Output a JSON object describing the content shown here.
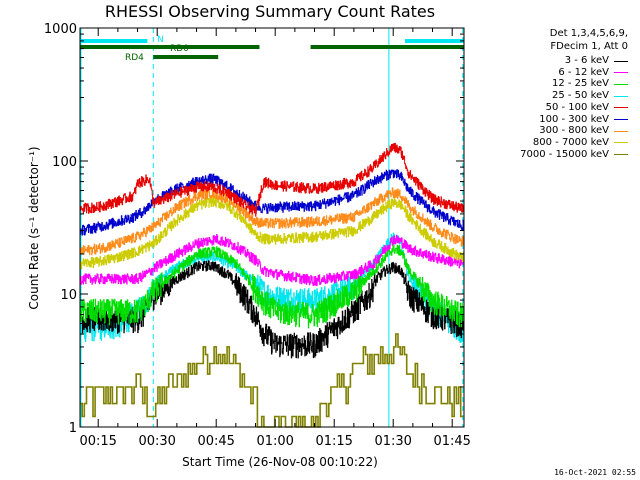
{
  "chart_data": {
    "type": "line",
    "title": "RHESSI Observing Summary Count Rates",
    "xlabel": "Start Time (26-Nov-08 00:10:22)",
    "ylabel": "Count Rate (s⁻¹ detector⁻¹)",
    "y_scale": "log",
    "ylim": [
      1,
      1000
    ],
    "xlim_minutes": [
      10.37,
      108
    ],
    "y_tick_labels": [
      "1",
      "10",
      "100",
      "1000"
    ],
    "x_tick_labels": [
      "00:15",
      "00:30",
      "00:45",
      "01:00",
      "01:15",
      "01:30",
      "01:45"
    ],
    "x_tick_minutes": [
      15,
      30,
      45,
      60,
      75,
      90,
      105
    ],
    "grid": false,
    "legend_placement": "right-outside",
    "legend_header": [
      "Det 1,3,4,5,6,9,",
      "FDecim 1, Att 0"
    ],
    "series": [
      {
        "name": "3 - 6 keV",
        "color": "#000000",
        "x": [
          25,
          27,
          28,
          29,
          35,
          40,
          44,
          48,
          52,
          55,
          57,
          60,
          70,
          80,
          84,
          86,
          88,
          90,
          92,
          94,
          100,
          107
        ],
        "y": [
          6.5,
          7.3,
          8.8,
          9.7,
          13,
          16,
          16.5,
          14,
          10,
          7,
          5.2,
          4.2,
          4.2,
          7.5,
          10,
          13.3,
          15,
          16,
          15,
          10,
          7,
          6
        ]
      },
      {
        "name": "6 - 12 keV",
        "color": "#ff00ff",
        "x": [
          25,
          28,
          29,
          35,
          40,
          45,
          50,
          55,
          57,
          60,
          70,
          80,
          85,
          88,
          90,
          92,
          94,
          100,
          107
        ],
        "y": [
          13,
          14.6,
          15.5,
          20,
          24,
          26,
          23,
          18,
          15,
          14.2,
          12.6,
          14,
          17,
          22,
          26,
          25,
          22,
          19,
          17
        ]
      },
      {
        "name": "12 - 25 keV",
        "color": "#00dd00",
        "x": [
          25,
          27,
          28,
          29,
          35,
          40,
          45,
          50,
          55,
          57,
          60,
          70,
          80,
          85,
          88,
          90,
          92,
          94,
          100,
          107
        ],
        "y": [
          7.5,
          8.5,
          9.5,
          10.5,
          15,
          20,
          21,
          17,
          11,
          9,
          7.5,
          7,
          10.5,
          15,
          19,
          22,
          21,
          15,
          9,
          7
        ]
      },
      {
        "name": "25 - 50 keV",
        "color": "#00e5ee",
        "x": [
          10.5,
          20,
          25,
          28,
          29,
          35,
          40,
          45,
          50,
          55,
          57,
          60,
          70,
          80,
          85,
          88,
          90,
          92,
          94,
          100,
          107
        ],
        "y": [
          5.5,
          5.8,
          7.5,
          9.5,
          12,
          16,
          19,
          19,
          16,
          12,
          10.5,
          9.5,
          9,
          11.5,
          17,
          23,
          27,
          24,
          13,
          8,
          5.5
        ]
      },
      {
        "name": "50 - 100 keV",
        "color": "#e60000",
        "x": [
          10.5,
          15,
          20,
          24,
          25,
          28,
          29,
          35,
          40,
          44,
          48,
          52,
          55,
          57,
          60,
          70,
          80,
          85,
          88,
          90,
          92,
          94,
          100,
          107
        ],
        "y": [
          44,
          45,
          50,
          55,
          68,
          74,
          48,
          57,
          64,
          64,
          58,
          47,
          42,
          70,
          66,
          62,
          70,
          90,
          112,
          128,
          118,
          80,
          52,
          44
        ]
      },
      {
        "name": "100 - 300 keV",
        "color": "#0000cc",
        "x": [
          10.5,
          15,
          20,
          24,
          27,
          29,
          35,
          40,
          44,
          48,
          52,
          55,
          57,
          60,
          70,
          80,
          85,
          88,
          90,
          92,
          94,
          100,
          107
        ],
        "y": [
          30,
          32,
          35,
          38,
          43,
          50,
          62,
          70,
          74,
          64,
          53,
          46,
          44,
          45,
          46,
          55,
          70,
          78,
          82,
          76,
          60,
          42,
          33
        ]
      },
      {
        "name": "300 - 800 keV",
        "color": "#ff8c1a",
        "x": [
          10.5,
          15,
          20,
          25,
          29,
          35,
          40,
          44,
          48,
          52,
          55,
          57,
          60,
          70,
          80,
          85,
          88,
          90,
          92,
          94,
          100,
          107
        ],
        "y": [
          21,
          22,
          24,
          27,
          32,
          45,
          55,
          58,
          52,
          42,
          35,
          34,
          34,
          35,
          38,
          48,
          55,
          58,
          56,
          46,
          32,
          25
        ]
      },
      {
        "name": "800 - 7000 keV",
        "color": "#cccc00",
        "x": [
          10.5,
          15,
          20,
          25,
          29,
          35,
          40,
          44,
          48,
          52,
          55,
          57,
          60,
          70,
          80,
          85,
          88,
          90,
          92,
          94,
          100,
          107
        ],
        "y": [
          17,
          17.5,
          19,
          21,
          24,
          36,
          46,
          50,
          46,
          36,
          28,
          26,
          26,
          27,
          30,
          38,
          45,
          49,
          47,
          38,
          25,
          19
        ]
      },
      {
        "name": "7000 - 15000 keV",
        "color": "#808000",
        "x": [
          10.5,
          15,
          20,
          25,
          29,
          33,
          38,
          42,
          45,
          48,
          52,
          55,
          56,
          70,
          72,
          76,
          80,
          84,
          88,
          90,
          94,
          100,
          107
        ],
        "y": [
          1.5,
          1.7,
          1.8,
          2.0,
          1.4,
          1.9,
          2.6,
          3.4,
          3.9,
          3.2,
          2.3,
          1.7,
          1,
          1,
          1.5,
          2.0,
          2.7,
          3.2,
          3.6,
          3.9,
          2.7,
          1.8,
          1.5
        ]
      }
    ],
    "annotations": [
      {
        "label": "N",
        "color": "#00e5ee",
        "kind": "state-bar",
        "segments": [
          [
            10.5,
            27.5
          ],
          [
            93,
            108
          ]
        ]
      },
      {
        "label": "RD0",
        "color": "#006400",
        "kind": "state-bar",
        "segments": [
          [
            10.5,
            56
          ],
          [
            69,
            108
          ]
        ]
      },
      {
        "label": "RD4",
        "color": "#006400",
        "kind": "state-bar",
        "segments": [
          [
            29,
            45.5
          ]
        ]
      }
    ],
    "vertical_markers": [
      {
        "x": 10.6,
        "color": "#00e5ee",
        "style": "solid"
      },
      {
        "x": 29.0,
        "color": "#00e5ee",
        "style": "dashed"
      },
      {
        "x": 88.9,
        "color": "#00e5ee",
        "style": "solid"
      },
      {
        "x": 107.7,
        "color": "#00e5ee",
        "style": "dashed"
      }
    ]
  },
  "footer_timestamp": "16-Oct-2021 02:55"
}
